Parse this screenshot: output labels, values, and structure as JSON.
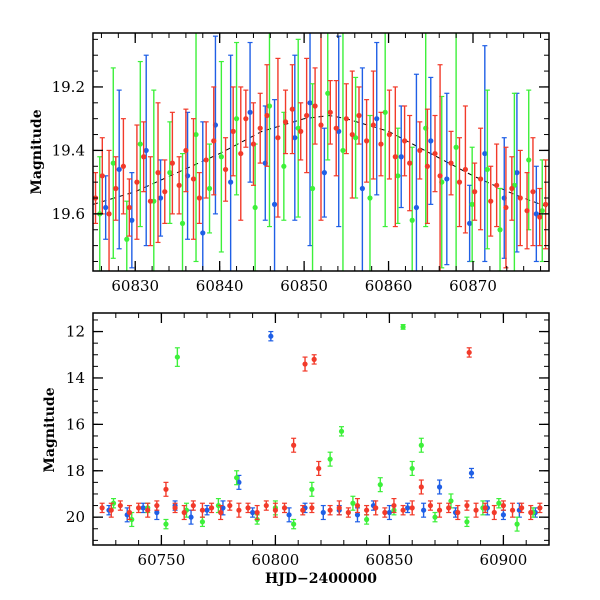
{
  "colors": {
    "blue": "#1f5fe6",
    "green": "#3df03a",
    "red": "#f23a2a",
    "model": "#000000"
  },
  "chart_data": [
    {
      "id": "top",
      "type": "scatter",
      "title": "",
      "xlabel": "",
      "ylabel": "Magnitude",
      "xlim": [
        60825,
        60879
      ],
      "ylim": [
        19.78,
        19.03
      ],
      "y_inverted": true,
      "x_ticks": [
        60830,
        60840,
        60850,
        60860,
        60870
      ],
      "y_ticks": [
        19.2,
        19.4,
        19.6
      ],
      "x_tick_labels": [
        "60830",
        "60840",
        "60850",
        "60860",
        "60870"
      ],
      "y_tick_labels": [
        "19.2",
        "19.4",
        "19.6"
      ],
      "x_minor_step": 2,
      "y_minor_step": 0.05,
      "grid": false,
      "model_curve": {
        "style": "dashed",
        "x": [
          60825,
          60830,
          60835,
          60840,
          60845,
          60850,
          60853,
          60855,
          60860,
          60865,
          60870,
          60875,
          60879
        ],
        "y": [
          19.57,
          19.53,
          19.47,
          19.41,
          19.34,
          19.3,
          19.29,
          19.3,
          19.34,
          19.41,
          19.48,
          19.54,
          19.58
        ]
      },
      "series": [
        {
          "color": "blue",
          "x": [
            60826.5,
            60828.1,
            60829.6,
            60831.3,
            60833.0,
            60836.2,
            60838.0,
            60839.5,
            60841.3,
            60843.6,
            60845.4,
            60846.5,
            60848.9,
            60850.7,
            60852.4,
            60854.1,
            60856.9,
            60858.6,
            60861.5,
            60863.3,
            60865.0,
            60866.9,
            60869.6,
            60871.4,
            60873.7,
            60875.2,
            60877.5
          ],
          "y": [
            19.58,
            19.46,
            19.62,
            19.4,
            19.55,
            19.48,
            19.66,
            19.32,
            19.5,
            19.28,
            19.44,
            19.57,
            19.36,
            19.25,
            19.47,
            19.34,
            19.52,
            19.3,
            19.42,
            19.58,
            19.37,
            19.49,
            19.63,
            19.41,
            19.55,
            19.47,
            19.6
          ],
          "err": [
            0.1,
            0.25,
            0.15,
            0.3,
            0.12,
            0.2,
            0.35,
            0.28,
            0.4,
            0.22,
            0.18,
            0.33,
            0.26,
            0.45,
            0.14,
            0.3,
            0.38,
            0.24,
            0.16,
            0.42,
            0.2,
            0.27,
            0.12,
            0.34,
            0.19,
            0.25,
            0.15
          ]
        },
        {
          "color": "green",
          "x": [
            60825.8,
            60827.4,
            60829.0,
            60830.6,
            60832.2,
            60834.1,
            60835.6,
            60837.2,
            60838.8,
            60840.2,
            60842.0,
            60844.2,
            60845.9,
            60847.6,
            60849.3,
            60851.0,
            60852.8,
            60854.6,
            60856.1,
            60857.8,
            60859.6,
            60861.1,
            60862.8,
            60864.4,
            60866.3,
            60868.0,
            60869.9,
            60871.7,
            60873.2,
            60874.9,
            60876.6,
            60878.2
          ],
          "y": [
            19.6,
            19.44,
            19.68,
            19.38,
            19.56,
            19.47,
            19.63,
            19.35,
            19.52,
            19.42,
            19.3,
            19.58,
            19.26,
            19.45,
            19.33,
            19.52,
            19.22,
            19.4,
            19.36,
            19.55,
            19.28,
            19.48,
            19.62,
            19.33,
            19.5,
            19.39,
            19.57,
            19.46,
            19.65,
            19.51,
            19.43,
            19.59
          ],
          "err": [
            0.18,
            0.3,
            0.12,
            0.26,
            0.35,
            0.16,
            0.22,
            0.4,
            0.14,
            0.3,
            0.24,
            0.2,
            0.38,
            0.17,
            0.28,
            0.33,
            0.21,
            0.44,
            0.19,
            0.26,
            0.36,
            0.15,
            0.23,
            0.31,
            0.27,
            0.42,
            0.18,
            0.25,
            0.13,
            0.29,
            0.22,
            0.16
          ]
        },
        {
          "color": "red",
          "x": [
            60825.3,
            60826.1,
            60826.9,
            60827.7,
            60828.6,
            60829.3,
            60830.2,
            60831.0,
            60831.8,
            60832.7,
            60833.5,
            60834.4,
            60835.2,
            60836.0,
            60836.9,
            60837.6,
            60838.4,
            60839.3,
            60840.7,
            60841.6,
            60842.5,
            60843.1,
            60844.0,
            60844.8,
            60845.6,
            60846.9,
            60847.8,
            60848.6,
            60849.6,
            60850.3,
            60851.3,
            60852.0,
            60853.1,
            60853.8,
            60855.0,
            60855.7,
            60856.5,
            60857.4,
            60858.2,
            60859.1,
            60860.1,
            60860.8,
            60861.9,
            60862.5,
            60863.7,
            60864.6,
            60865.5,
            60866.1,
            60867.4,
            60868.4,
            60869.1,
            60870.2,
            60870.9,
            60872.1,
            60872.8,
            60873.9,
            60874.6,
            60875.6,
            60876.4,
            60877.1,
            60877.9,
            60878.6
          ],
          "y": [
            19.55,
            19.48,
            19.6,
            19.52,
            19.45,
            19.58,
            19.5,
            19.42,
            19.56,
            19.47,
            19.53,
            19.44,
            19.51,
            19.4,
            19.49,
            19.55,
            19.43,
            19.37,
            19.46,
            19.34,
            19.41,
            19.3,
            19.38,
            19.33,
            19.29,
            19.36,
            19.31,
            19.27,
            19.34,
            19.29,
            19.26,
            19.32,
            19.28,
            19.33,
            19.3,
            19.35,
            19.29,
            19.37,
            19.32,
            19.38,
            19.35,
            19.42,
            19.37,
            19.44,
            19.4,
            19.45,
            19.41,
            19.48,
            19.44,
            19.5,
            19.46,
            19.53,
            19.49,
            19.56,
            19.51,
            19.58,
            19.52,
            19.55,
            19.59,
            19.53,
            19.61,
            19.57
          ],
          "err": [
            0.08,
            0.12,
            0.2,
            0.1,
            0.15,
            0.09,
            0.18,
            0.11,
            0.14,
            0.22,
            0.1,
            0.16,
            0.09,
            0.13,
            0.19,
            0.08,
            0.12,
            0.17,
            0.1,
            0.14,
            0.21,
            0.09,
            0.13,
            0.11,
            0.16,
            0.25,
            0.1,
            0.14,
            0.09,
            0.18,
            0.12,
            0.3,
            0.1,
            0.15,
            0.11,
            0.2,
            0.09,
            0.13,
            0.17,
            0.1,
            0.14,
            0.22,
            0.11,
            0.15,
            0.09,
            0.18,
            0.12,
            0.35,
            0.1,
            0.14,
            0.2,
            0.09,
            0.16,
            0.11,
            0.13,
            0.19,
            0.1,
            0.15,
            0.12,
            0.17,
            0.09,
            0.14
          ]
        }
      ]
    },
    {
      "id": "bottom",
      "type": "scatter",
      "title": "",
      "xlabel": "HJD−2400000",
      "ylabel": "Magnitude",
      "xlim": [
        60720,
        60920
      ],
      "ylim": [
        21.2,
        11.2
      ],
      "y_inverted": true,
      "x_ticks": [
        60750,
        60800,
        60850,
        60900
      ],
      "y_ticks": [
        12,
        14,
        16,
        18,
        20
      ],
      "x_tick_labels": [
        "60750",
        "60800",
        "60850",
        "60900"
      ],
      "y_tick_labels": [
        "12",
        "14",
        "16",
        "18",
        "20"
      ],
      "x_minor_step": 10,
      "y_minor_step": 0.5,
      "grid": false,
      "series": [
        {
          "color": "blue",
          "x": [
            60727,
            60735,
            60742,
            60748,
            60756,
            60763,
            60770,
            60777,
            60784,
            60790,
            60798,
            60806,
            60813,
            60821,
            60828,
            60836,
            60843,
            60850,
            60858,
            60865,
            60872,
            60879,
            60886,
            60893,
            60900,
            60907,
            60914
          ],
          "y": [
            19.7,
            19.9,
            19.6,
            19.8,
            19.5,
            20.0,
            19.7,
            19.6,
            18.5,
            19.8,
            12.2,
            19.9,
            19.6,
            19.8,
            19.7,
            19.9,
            19.5,
            19.8,
            19.6,
            19.7,
            18.7,
            19.8,
            18.1,
            19.6,
            19.9,
            19.7,
            19.8
          ],
          "err": [
            0.2,
            0.3,
            0.2,
            0.3,
            0.2,
            0.3,
            0.2,
            0.3,
            0.3,
            0.2,
            0.2,
            0.3,
            0.2,
            0.3,
            0.2,
            0.3,
            0.2,
            0.3,
            0.2,
            0.3,
            0.3,
            0.2,
            0.2,
            0.3,
            0.2,
            0.3,
            0.2
          ]
        },
        {
          "color": "green",
          "x": [
            60729,
            60737,
            60744,
            60752,
            60757,
            60761,
            60768,
            60775,
            60783,
            60792,
            60800,
            60808,
            60816,
            60824,
            60829,
            60834,
            60840,
            60846,
            60852,
            60856,
            60860,
            60864,
            60870,
            60877,
            60884,
            60891,
            60898,
            60906,
            60913
          ],
          "y": [
            19.4,
            20.1,
            19.6,
            20.3,
            13.1,
            19.7,
            20.2,
            19.5,
            18.3,
            20.1,
            19.6,
            20.3,
            18.8,
            17.5,
            16.3,
            19.4,
            20.1,
            18.6,
            19.7,
            11.8,
            17.9,
            16.9,
            20.0,
            19.3,
            20.2,
            19.6,
            19.4,
            20.3,
            19.8
          ],
          "err": [
            0.2,
            0.3,
            0.2,
            0.2,
            0.4,
            0.3,
            0.2,
            0.3,
            0.3,
            0.2,
            0.3,
            0.2,
            0.3,
            0.3,
            0.2,
            0.3,
            0.2,
            0.3,
            0.2,
            0.1,
            0.3,
            0.3,
            0.2,
            0.3,
            0.2,
            0.3,
            0.2,
            0.3,
            0.2
          ]
        },
        {
          "color": "red",
          "x": [
            60724,
            60728,
            60732,
            60736,
            60740,
            60744,
            60748,
            60752,
            60756,
            60760,
            60764,
            60768,
            60772,
            60776,
            60780,
            60784,
            60788,
            60792,
            60796,
            60800,
            60804,
            60808,
            60812,
            60813,
            60816,
            60817,
            60819,
            60824,
            60828,
            60832,
            60836,
            60840,
            60844,
            60848,
            60852,
            60856,
            60860,
            60864,
            60868,
            60872,
            60876,
            60880,
            60884,
            60885,
            60888,
            60892,
            60896,
            60900,
            60904,
            60908,
            60912,
            60916
          ],
          "y": [
            19.6,
            19.7,
            19.5,
            19.8,
            19.6,
            19.7,
            19.5,
            18.8,
            19.6,
            19.8,
            19.5,
            19.7,
            19.6,
            19.8,
            19.5,
            19.7,
            19.6,
            19.8,
            19.5,
            19.7,
            19.6,
            16.9,
            19.7,
            13.4,
            19.6,
            13.2,
            17.9,
            19.7,
            19.6,
            19.8,
            19.5,
            19.7,
            19.6,
            19.8,
            19.5,
            19.7,
            19.6,
            18.7,
            19.5,
            19.7,
            19.6,
            19.8,
            19.5,
            12.9,
            19.7,
            19.6,
            19.8,
            19.5,
            19.7,
            19.6,
            19.8,
            19.6
          ],
          "err": [
            0.2,
            0.3,
            0.2,
            0.3,
            0.2,
            0.3,
            0.2,
            0.3,
            0.2,
            0.3,
            0.2,
            0.3,
            0.2,
            0.3,
            0.2,
            0.3,
            0.2,
            0.3,
            0.2,
            0.3,
            0.2,
            0.3,
            0.2,
            0.3,
            0.2,
            0.2,
            0.3,
            0.2,
            0.3,
            0.2,
            0.3,
            0.2,
            0.3,
            0.2,
            0.3,
            0.2,
            0.3,
            0.3,
            0.2,
            0.3,
            0.2,
            0.3,
            0.2,
            0.2,
            0.3,
            0.2,
            0.3,
            0.2,
            0.3,
            0.2,
            0.3,
            0.2
          ]
        }
      ]
    }
  ]
}
